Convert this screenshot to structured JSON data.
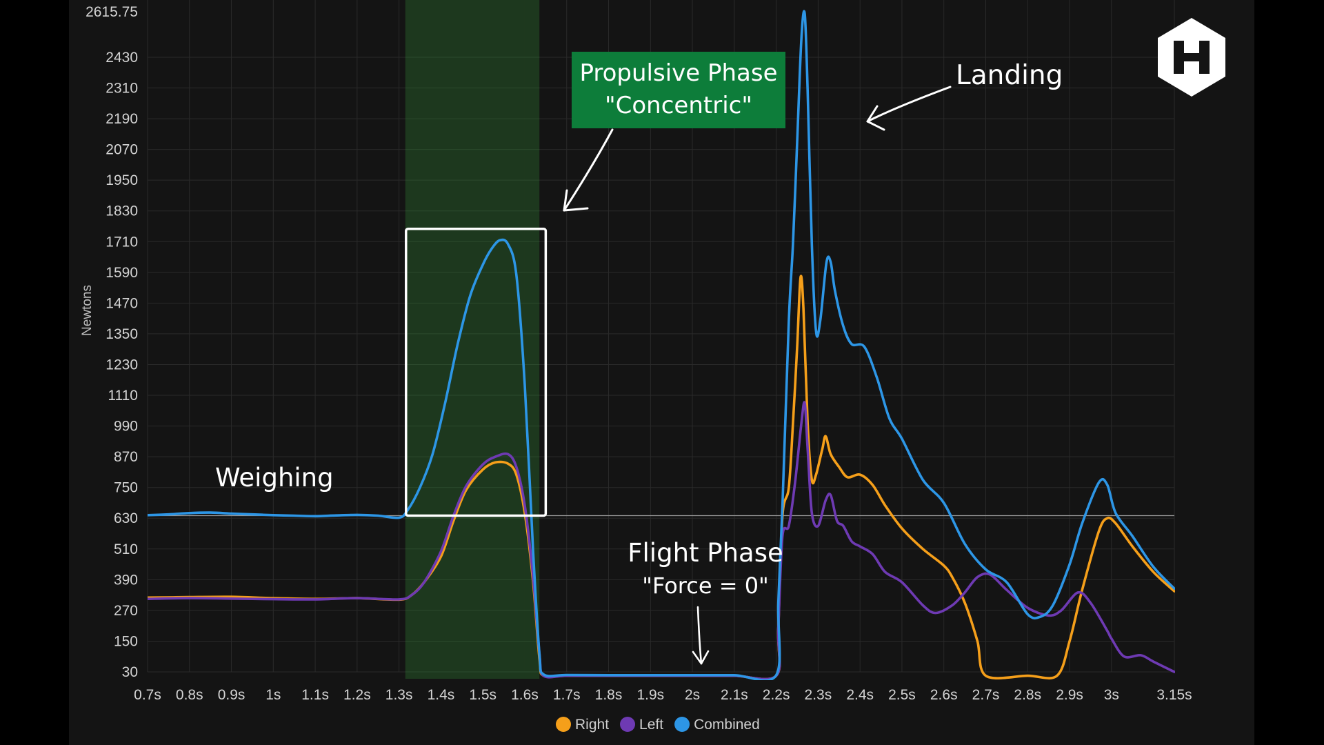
{
  "chart_data": {
    "type": "line",
    "ylabel": "Newtons",
    "xlabel": "",
    "title": "",
    "ylim": [
      30,
      2615.75
    ],
    "xlim": [
      0.7,
      3.15
    ],
    "y_ticks": [
      30,
      150,
      270,
      390,
      510,
      630,
      750,
      870,
      990,
      1110,
      1230,
      1350,
      1470,
      1590,
      1710,
      1830,
      1950,
      2070,
      2190,
      2310,
      2430
    ],
    "y_max_label": "2615.75",
    "x_ticks": [
      {
        "v": 0.7,
        "label": "0.7s"
      },
      {
        "v": 0.8,
        "label": "0.8s"
      },
      {
        "v": 0.9,
        "label": "0.9s"
      },
      {
        "v": 1.0,
        "label": "1s"
      },
      {
        "v": 1.1,
        "label": "1.1s"
      },
      {
        "v": 1.2,
        "label": "1.2s"
      },
      {
        "v": 1.3,
        "label": "1.3s"
      },
      {
        "v": 1.4,
        "label": "1.4s"
      },
      {
        "v": 1.5,
        "label": "1.5s"
      },
      {
        "v": 1.6,
        "label": "1.6s"
      },
      {
        "v": 1.7,
        "label": "1.7s"
      },
      {
        "v": 1.8,
        "label": "1.8s"
      },
      {
        "v": 1.9,
        "label": "1.9s"
      },
      {
        "v": 2.0,
        "label": "2s"
      },
      {
        "v": 2.1,
        "label": "2.1s"
      },
      {
        "v": 2.2,
        "label": "2.2s"
      },
      {
        "v": 2.3,
        "label": "2.3s"
      },
      {
        "v": 2.4,
        "label": "2.4s"
      },
      {
        "v": 2.5,
        "label": "2.5s"
      },
      {
        "v": 2.6,
        "label": "2.6s"
      },
      {
        "v": 2.7,
        "label": "2.7s"
      },
      {
        "v": 2.8,
        "label": "2.8s"
      },
      {
        "v": 2.9,
        "label": "2.9s"
      },
      {
        "v": 3.0,
        "label": "3s"
      },
      {
        "v": 3.15,
        "label": "3.15s"
      }
    ],
    "grid": true,
    "legend_position": "bottom-center",
    "bodyweight_line": 640,
    "propulsive_band": [
      1.315,
      1.635
    ],
    "series": [
      {
        "name": "Right",
        "color": "#f59f1a",
        "points": [
          [
            0.7,
            320
          ],
          [
            0.8,
            322
          ],
          [
            0.9,
            323
          ],
          [
            1.0,
            318
          ],
          [
            1.1,
            315
          ],
          [
            1.2,
            318
          ],
          [
            1.3,
            312
          ],
          [
            1.33,
            330
          ],
          [
            1.36,
            380
          ],
          [
            1.4,
            480
          ],
          [
            1.43,
            620
          ],
          [
            1.46,
            740
          ],
          [
            1.5,
            820
          ],
          [
            1.53,
            848
          ],
          [
            1.56,
            843
          ],
          [
            1.58,
            800
          ],
          [
            1.6,
            650
          ],
          [
            1.62,
            380
          ],
          [
            1.635,
            80
          ],
          [
            1.645,
            15
          ],
          [
            1.7,
            15
          ],
          [
            1.8,
            15
          ],
          [
            1.9,
            15
          ],
          [
            2.0,
            15
          ],
          [
            2.1,
            15
          ],
          [
            2.2,
            15
          ],
          [
            2.205,
            200
          ],
          [
            2.215,
            640
          ],
          [
            2.23,
            750
          ],
          [
            2.24,
            1000
          ],
          [
            2.25,
            1300
          ],
          [
            2.258,
            1570
          ],
          [
            2.265,
            1450
          ],
          [
            2.275,
            1000
          ],
          [
            2.285,
            780
          ],
          [
            2.295,
            800
          ],
          [
            2.31,
            900
          ],
          [
            2.318,
            950
          ],
          [
            2.33,
            880
          ],
          [
            2.35,
            830
          ],
          [
            2.37,
            790
          ],
          [
            2.4,
            800
          ],
          [
            2.43,
            760
          ],
          [
            2.46,
            680
          ],
          [
            2.5,
            590
          ],
          [
            2.55,
            510
          ],
          [
            2.6,
            445
          ],
          [
            2.62,
            400
          ],
          [
            2.65,
            300
          ],
          [
            2.68,
            150
          ],
          [
            2.7,
            15
          ],
          [
            2.8,
            15
          ],
          [
            2.87,
            15
          ],
          [
            2.9,
            150
          ],
          [
            2.93,
            350
          ],
          [
            2.97,
            580
          ],
          [
            2.99,
            630
          ],
          [
            3.01,
            610
          ],
          [
            3.05,
            520
          ],
          [
            3.1,
            420
          ],
          [
            3.15,
            345
          ]
        ]
      },
      {
        "name": "Left",
        "color": "#6e3ab3",
        "points": [
          [
            0.7,
            315
          ],
          [
            0.8,
            318
          ],
          [
            0.9,
            316
          ],
          [
            1.0,
            314
          ],
          [
            1.1,
            313
          ],
          [
            1.2,
            318
          ],
          [
            1.3,
            313
          ],
          [
            1.33,
            330
          ],
          [
            1.36,
            380
          ],
          [
            1.4,
            500
          ],
          [
            1.43,
            640
          ],
          [
            1.46,
            755
          ],
          [
            1.5,
            840
          ],
          [
            1.53,
            870
          ],
          [
            1.56,
            880
          ],
          [
            1.58,
            830
          ],
          [
            1.6,
            680
          ],
          [
            1.62,
            400
          ],
          [
            1.635,
            100
          ],
          [
            1.645,
            15
          ],
          [
            1.7,
            15
          ],
          [
            1.8,
            15
          ],
          [
            1.9,
            15
          ],
          [
            2.0,
            15
          ],
          [
            2.1,
            15
          ],
          [
            2.2,
            15
          ],
          [
            2.205,
            200
          ],
          [
            2.215,
            560
          ],
          [
            2.23,
            600
          ],
          [
            2.245,
            770
          ],
          [
            2.26,
            1000
          ],
          [
            2.268,
            1080
          ],
          [
            2.275,
            900
          ],
          [
            2.285,
            650
          ],
          [
            2.3,
            600
          ],
          [
            2.318,
            700
          ],
          [
            2.33,
            720
          ],
          [
            2.345,
            620
          ],
          [
            2.36,
            600
          ],
          [
            2.38,
            540
          ],
          [
            2.4,
            520
          ],
          [
            2.43,
            490
          ],
          [
            2.46,
            420
          ],
          [
            2.5,
            380
          ],
          [
            2.55,
            290
          ],
          [
            2.58,
            260
          ],
          [
            2.62,
            290
          ],
          [
            2.65,
            340
          ],
          [
            2.68,
            400
          ],
          [
            2.71,
            410
          ],
          [
            2.75,
            350
          ],
          [
            2.8,
            280
          ],
          [
            2.85,
            250
          ],
          [
            2.88,
            270
          ],
          [
            2.92,
            340
          ],
          [
            2.95,
            300
          ],
          [
            2.99,
            190
          ],
          [
            3.0,
            160
          ],
          [
            3.03,
            90
          ],
          [
            3.07,
            95
          ],
          [
            3.1,
            70
          ],
          [
            3.15,
            30
          ]
        ]
      },
      {
        "name": "Combined",
        "color": "#2d96e6",
        "points": [
          [
            0.7,
            642
          ],
          [
            0.75,
            645
          ],
          [
            0.8,
            650
          ],
          [
            0.85,
            652
          ],
          [
            0.9,
            648
          ],
          [
            0.95,
            645
          ],
          [
            1.0,
            642
          ],
          [
            1.05,
            640
          ],
          [
            1.1,
            638
          ],
          [
            1.15,
            641
          ],
          [
            1.2,
            643
          ],
          [
            1.25,
            640
          ],
          [
            1.3,
            632
          ],
          [
            1.32,
            660
          ],
          [
            1.35,
            750
          ],
          [
            1.38,
            880
          ],
          [
            1.41,
            1080
          ],
          [
            1.44,
            1310
          ],
          [
            1.47,
            1500
          ],
          [
            1.5,
            1620
          ],
          [
            1.52,
            1680
          ],
          [
            1.54,
            1715
          ],
          [
            1.56,
            1700
          ],
          [
            1.58,
            1580
          ],
          [
            1.6,
            1150
          ],
          [
            1.62,
            500
          ],
          [
            1.635,
            100
          ],
          [
            1.645,
            20
          ],
          [
            1.7,
            18
          ],
          [
            1.8,
            17
          ],
          [
            1.9,
            17
          ],
          [
            2.0,
            17
          ],
          [
            2.1,
            17
          ],
          [
            2.2,
            17
          ],
          [
            2.205,
            300
          ],
          [
            2.215,
            680
          ],
          [
            2.23,
            1400
          ],
          [
            2.24,
            1700
          ],
          [
            2.25,
            2100
          ],
          [
            2.26,
            2500
          ],
          [
            2.268,
            2600
          ],
          [
            2.275,
            2300
          ],
          [
            2.285,
            1700
          ],
          [
            2.295,
            1360
          ],
          [
            2.305,
            1400
          ],
          [
            2.32,
            1630
          ],
          [
            2.33,
            1630
          ],
          [
            2.34,
            1520
          ],
          [
            2.36,
            1380
          ],
          [
            2.38,
            1310
          ],
          [
            2.41,
            1300
          ],
          [
            2.44,
            1180
          ],
          [
            2.47,
            1020
          ],
          [
            2.5,
            940
          ],
          [
            2.55,
            780
          ],
          [
            2.6,
            690
          ],
          [
            2.65,
            530
          ],
          [
            2.7,
            430
          ],
          [
            2.75,
            380
          ],
          [
            2.8,
            255
          ],
          [
            2.83,
            245
          ],
          [
            2.86,
            290
          ],
          [
            2.9,
            450
          ],
          [
            2.93,
            610
          ],
          [
            2.97,
            770
          ],
          [
            2.99,
            760
          ],
          [
            3.01,
            650
          ],
          [
            3.05,
            560
          ],
          [
            3.1,
            440
          ],
          [
            3.15,
            355
          ]
        ]
      }
    ]
  },
  "annotations": {
    "weighing": "Weighing",
    "propulsive_line1": "Propulsive Phase",
    "propulsive_line2": "\"Concentric\"",
    "landing": "Landing",
    "flight_line1": "Flight Phase",
    "flight_line2": "\"Force = 0\"",
    "propulsive_box_color": "#0d7d3a"
  },
  "logo": {
    "name": "hexagon-h-logo"
  }
}
